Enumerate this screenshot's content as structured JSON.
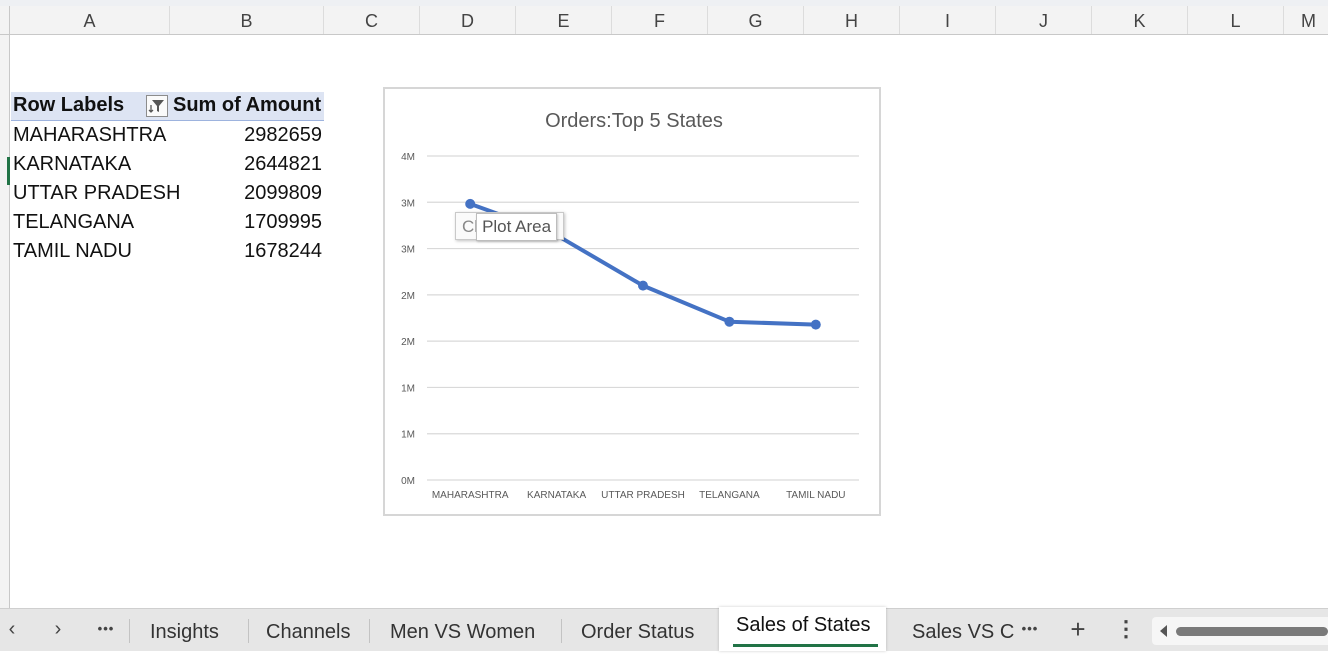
{
  "columns": [
    "A",
    "B",
    "C",
    "D",
    "E",
    "F",
    "G",
    "H",
    "I",
    "J",
    "K",
    "L",
    "M"
  ],
  "pivot": {
    "header_row_label": "Row Labels",
    "header_value_label": "Sum of Amount",
    "filter_icon": "filter-dropdown-icon",
    "rows": [
      {
        "label": "MAHARASHTRA",
        "value": "2982659"
      },
      {
        "label": "KARNATAKA",
        "value": "2644821"
      },
      {
        "label": "UTTAR PRADESH",
        "value": "2099809"
      },
      {
        "label": "TELANGANA",
        "value": "1709995"
      },
      {
        "label": "TAMIL NADU",
        "value": "1678244"
      }
    ]
  },
  "chart_data": {
    "type": "line",
    "title": "Orders:Top 5 States",
    "categories": [
      "MAHARASHTRA",
      "KARNATAKA",
      "UTTAR PRADESH",
      "TELANGANA",
      "TAMIL NADU"
    ],
    "series": [
      {
        "values": [
          2982659,
          2644821,
          2099809,
          1709995,
          1678244
        ]
      }
    ],
    "y_tick_labels": [
      "0M",
      "1M",
      "1M",
      "2M",
      "2M",
      "3M",
      "3M",
      "4M"
    ],
    "ylim": [
      0,
      3500000
    ],
    "grid": true,
    "color": "#4472c4"
  },
  "tooltip": {
    "ghost_text": "Cl",
    "text": "Plot Area"
  },
  "tabs": {
    "prev_icon": "‹",
    "next_icon": "›",
    "more_icon": "•••",
    "items": [
      "Insights",
      "Channels",
      "Men VS Women",
      "Order Status",
      "Sales of States",
      "Sales VS C"
    ],
    "active": "Sales of States",
    "add_icon": "+",
    "options_icon": "⋮"
  },
  "colors": {
    "accent": "#217346",
    "pivot_header": "#dde4f3",
    "series": "#4472c4"
  }
}
